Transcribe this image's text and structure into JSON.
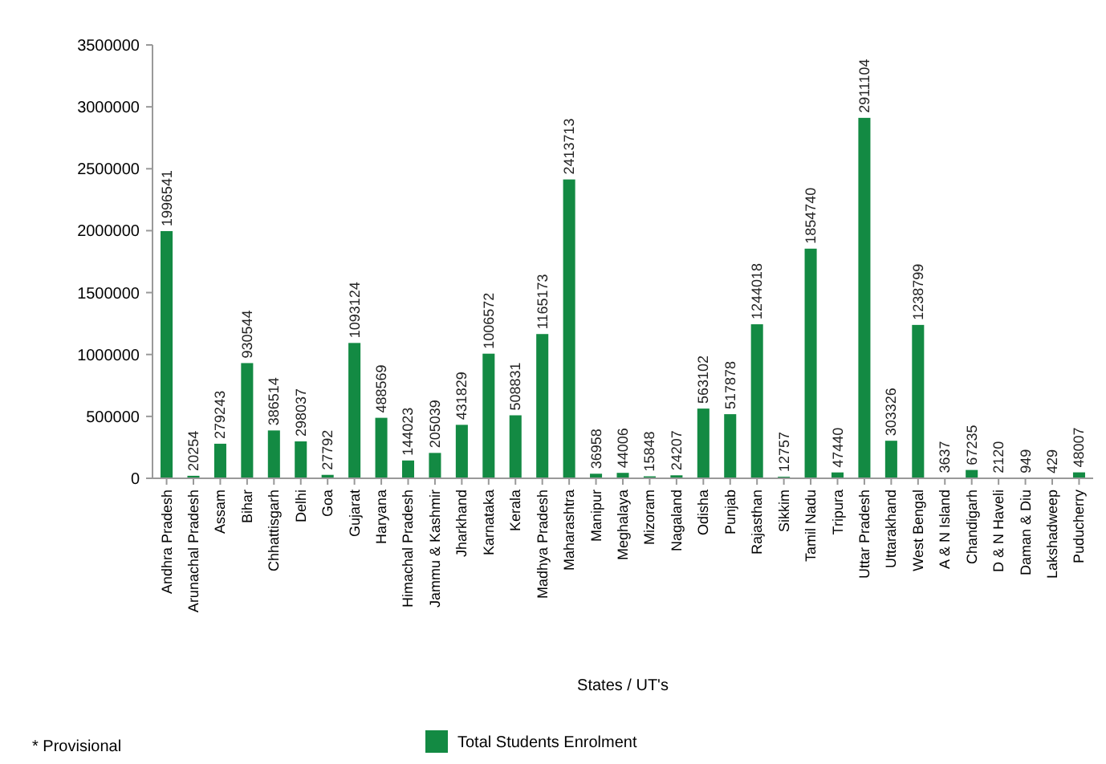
{
  "chart_data": {
    "type": "bar",
    "xlabel": "States / UT's",
    "annotations": [
      "* Provisional"
    ],
    "categories": [
      "Andhra Pradesh",
      "Arunachal Pradesh",
      "Assam",
      "Bihar",
      "Chhattisgarh",
      "Delhi",
      "Goa",
      "Gujarat",
      "Haryana",
      "Himachal Pradesh",
      "Jammu & Kashmir",
      "Jharkhand",
      "Karnataka",
      "Kerala",
      "Madhya Pradesh",
      "Maharashtra",
      "Manipur",
      "Meghalaya",
      "Mizoram",
      "Nagaland",
      "Odisha",
      "Punjab",
      "Rajasthan",
      "Sikkim",
      "Tamil Nadu",
      "Tripura",
      "Uttar Pradesh",
      "Uttarakhand",
      "West Bengal",
      "A & N Island",
      "Chandigarh",
      "D & N Haveli",
      "Daman & Diu",
      "Lakshadweep",
      "Puducherry"
    ],
    "series": [
      {
        "name": "Total Students Enrolment",
        "color": "#138a43",
        "values": [
          1996541,
          20254,
          279243,
          930544,
          386514,
          298037,
          27792,
          1093124,
          488569,
          144023,
          205039,
          431829,
          1006572,
          508831,
          1165173,
          2413713,
          36958,
          44006,
          15848,
          24207,
          563102,
          517878,
          1244018,
          12757,
          1854740,
          47440,
          2911104,
          303326,
          1238799,
          3637,
          67235,
          2120,
          949,
          429,
          48007
        ]
      }
    ],
    "ylim": [
      0,
      3500000
    ],
    "yticks": [
      0,
      500000,
      1000000,
      1500000,
      2000000,
      2500000,
      3000000,
      3500000
    ],
    "data_labels": true,
    "legend": "bottom"
  }
}
